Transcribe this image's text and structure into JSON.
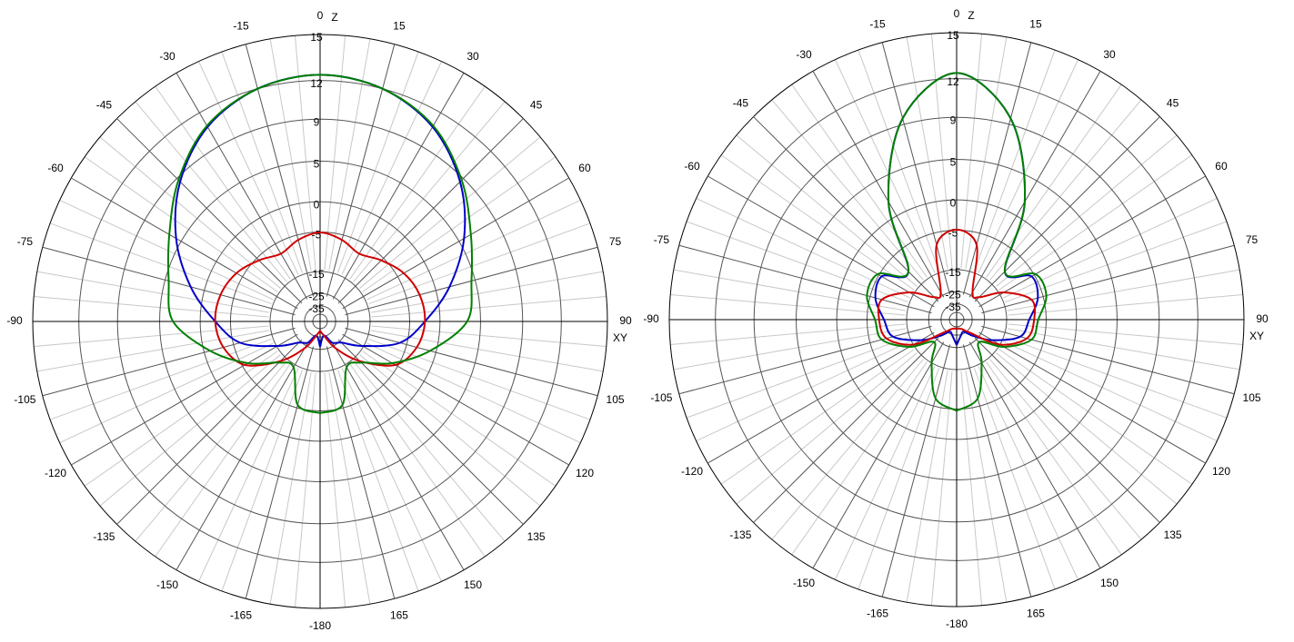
{
  "chart_data": [
    {
      "type": "polar",
      "rscale": "arrl-log",
      "top_label": "Z",
      "right_label": "XY",
      "xticks": [
        0,
        15,
        30,
        45,
        60,
        75,
        90,
        105,
        120,
        135,
        150,
        165,
        -180,
        -165,
        -150,
        -135,
        -120,
        -105,
        -90,
        -75,
        -60,
        -45,
        -30,
        -15
      ],
      "rticks": [
        15,
        12,
        9,
        5,
        0,
        -5,
        -15,
        -25,
        -35
      ],
      "x": [
        -180,
        -165,
        -150,
        -135,
        -120,
        -105,
        -90,
        -75,
        -60,
        -45,
        -30,
        -15,
        0,
        15,
        30,
        45,
        60,
        75,
        90,
        105,
        120,
        135,
        150,
        165,
        180
      ],
      "series": [
        {
          "color": "#0000c8",
          "values": [
            -26.6,
            -36,
            -27.2,
            -23.8,
            -15.3,
            -6.4,
            -2.3,
            1.9,
            5.6,
            8.6,
            10.8,
            12.0,
            12.4,
            12.0,
            10.8,
            8.6,
            5.6,
            1.9,
            -2.3,
            -6.4,
            -15.3,
            -23.8,
            -27.2,
            -36,
            -26.6
          ]
        },
        {
          "color": "#d00000",
          "values": [
            -44,
            -36,
            -23.3,
            -13.0,
            -5.5,
            -3.1,
            -2.3,
            -2.6,
            -3.7,
            -5.6,
            -7.3,
            -6.0,
            -5.1,
            -6.0,
            -7.3,
            -5.6,
            -3.7,
            -2.6,
            -2.3,
            -3.1,
            -5.5,
            -13.0,
            -23.3,
            -36,
            -44
          ]
        },
        {
          "color": "#008000",
          "values": [
            -4.6,
            -5.6,
            -14,
            -12.4,
            -6.2,
            -0.9,
            3.5,
            4.6,
            6.4,
            8.8,
            10.9,
            12.0,
            12.4,
            12.0,
            10.9,
            8.8,
            6.4,
            4.6,
            3.5,
            -0.9,
            -6.2,
            -12.4,
            -14,
            -5.6,
            -4.6
          ]
        }
      ]
    },
    {
      "type": "polar",
      "rscale": "arrl-log",
      "top_label": "Z",
      "right_label": "XY",
      "xticks": [
        0,
        15,
        30,
        45,
        60,
        75,
        90,
        105,
        120,
        135,
        150,
        165,
        -180,
        -165,
        -150,
        -135,
        -120,
        -105,
        -90,
        -75,
        -60,
        -45,
        -30,
        -15
      ],
      "rticks": [
        15,
        12,
        9,
        5,
        0,
        -5,
        -15,
        -25,
        -35
      ],
      "x": [
        -180,
        -165,
        -150,
        -135,
        -120,
        -105,
        -90,
        -75,
        -60,
        -45,
        -30,
        -15,
        0,
        15,
        30,
        45,
        60,
        75,
        90,
        105,
        120,
        135,
        150,
        165,
        180
      ],
      "series": [
        {
          "color": "#0000c8",
          "values": [
            -26.6,
            -34,
            -37,
            -28.4,
            -18.4,
            -10.3,
            -8.6,
            -6.1,
            -5.6,
            -9.7,
            2.2,
            9.5,
            12.4,
            9.5,
            2.2,
            -9.7,
            -5.6,
            -6.1,
            -8.6,
            -10.3,
            -18.4,
            -28.4,
            -37,
            -34,
            -26.6
          ]
        },
        {
          "color": "#d00000",
          "values": [
            -44,
            -44,
            -41,
            -32.3,
            -15,
            -8.6,
            -7.5,
            -7.5,
            -13.5,
            -22.8,
            -22.8,
            -7.5,
            -4.9,
            -7.5,
            -22.8,
            -22.8,
            -13.5,
            -7.5,
            -7.5,
            -8.6,
            -15,
            -32.3,
            -41,
            -44,
            -44
          ]
        },
        {
          "color": "#008000",
          "values": [
            -4.7,
            -6.6,
            -15,
            -22.8,
            -13.5,
            -7.5,
            -6.6,
            -4.4,
            -4.7,
            -9.7,
            2.2,
            9.5,
            12.4,
            9.5,
            2.2,
            -9.7,
            -4.7,
            -4.4,
            -6.6,
            -7.5,
            -13.5,
            -22.8,
            -15,
            -6.6,
            -4.7
          ]
        }
      ]
    }
  ]
}
